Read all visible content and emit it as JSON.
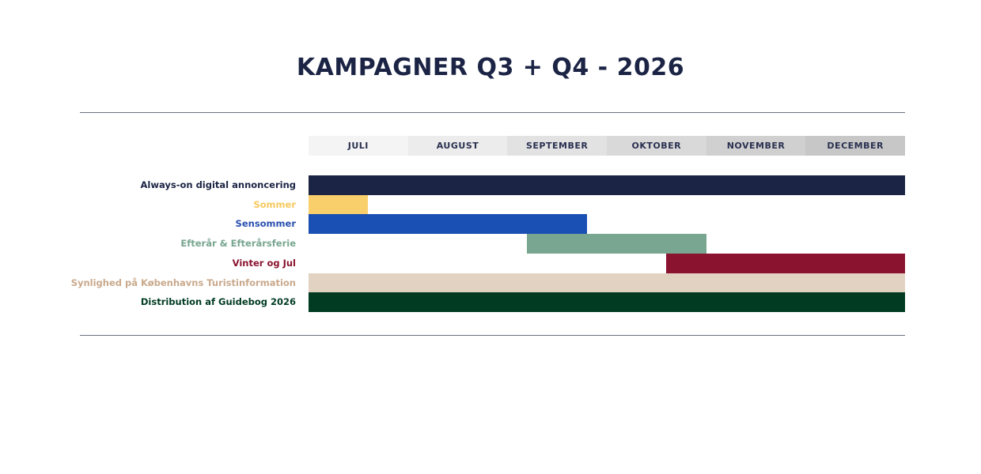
{
  "title": "KAMPAGNER Q3 + Q4 - 2026",
  "months": [
    {
      "label": "JULI",
      "bg": "#f4f4f4"
    },
    {
      "label": "AUGUST",
      "bg": "#ececec"
    },
    {
      "label": "SEPTEMBER",
      "bg": "#e2e2e2"
    },
    {
      "label": "OKTOBER",
      "bg": "#d9d9d9"
    },
    {
      "label": "NOVEMBER",
      "bg": "#d0d0d0"
    },
    {
      "label": "DECEMBER",
      "bg": "#c7c7c7"
    }
  ],
  "rows": [
    {
      "label": "Always-on digital annoncering",
      "color": "#1b2444",
      "label_color": "#1b2444",
      "start": 0.0,
      "end": 6.0
    },
    {
      "label": "Sommer",
      "color": "#f9cf6c",
      "label_color": "#f6c95e",
      "start": 0.0,
      "end": 0.6
    },
    {
      "label": "Sensommer",
      "color": "#1a4fb4",
      "label_color": "#2a4fb0",
      "start": 0.0,
      "end": 2.8
    },
    {
      "label": "Efterår & Efterårsferie",
      "color": "#78a690",
      "label_color": "#78a690",
      "start": 2.2,
      "end": 4.0
    },
    {
      "label": "Vinter og Jul",
      "color": "#8a1430",
      "label_color": "#8a1430",
      "start": 3.6,
      "end": 6.0
    },
    {
      "label": "Synlighed på Københavns Turistinformation",
      "color": "#e2d2c1",
      "label_color": "#c9a98c",
      "start": 0.0,
      "end": 6.0
    },
    {
      "label": "Distribution af Guidebog 2026",
      "color": "#013b22",
      "label_color": "#013b22",
      "start": 0.0,
      "end": 6.0
    }
  ],
  "chart_data": {
    "type": "gantt",
    "title": "KAMPAGNER Q3 + Q4 - 2026",
    "categories": [
      "JULI",
      "AUGUST",
      "SEPTEMBER",
      "OKTOBER",
      "NOVEMBER",
      "DECEMBER"
    ],
    "series": [
      {
        "name": "Always-on digital annoncering",
        "start": "JULI",
        "end": "DECEMBER",
        "start_month_offset": 0.0,
        "end_month_offset": 6.0,
        "color": "#1b2444"
      },
      {
        "name": "Sommer",
        "start": "JULI",
        "end": "JULI",
        "start_month_offset": 0.0,
        "end_month_offset": 0.6,
        "color": "#f9cf6c"
      },
      {
        "name": "Sensommer",
        "start": "JULI",
        "end": "SEPTEMBER",
        "start_month_offset": 0.0,
        "end_month_offset": 2.8,
        "color": "#1a4fb4"
      },
      {
        "name": "Efterår & Efterårsferie",
        "start": "SEPTEMBER",
        "end": "OKTOBER",
        "start_month_offset": 2.2,
        "end_month_offset": 4.0,
        "color": "#78a690"
      },
      {
        "name": "Vinter og Jul",
        "start": "OKTOBER",
        "end": "DECEMBER",
        "start_month_offset": 3.6,
        "end_month_offset": 6.0,
        "color": "#8a1430"
      },
      {
        "name": "Synlighed på Københavns Turistinformation",
        "start": "JULI",
        "end": "DECEMBER",
        "start_month_offset": 0.0,
        "end_month_offset": 6.0,
        "color": "#e2d2c1"
      },
      {
        "name": "Distribution af Guidebog 2026",
        "start": "JULI",
        "end": "DECEMBER",
        "start_month_offset": 0.0,
        "end_month_offset": 6.0,
        "color": "#013b22"
      }
    ],
    "xlabel": "",
    "ylabel": "",
    "legend": "none",
    "grid": false
  }
}
